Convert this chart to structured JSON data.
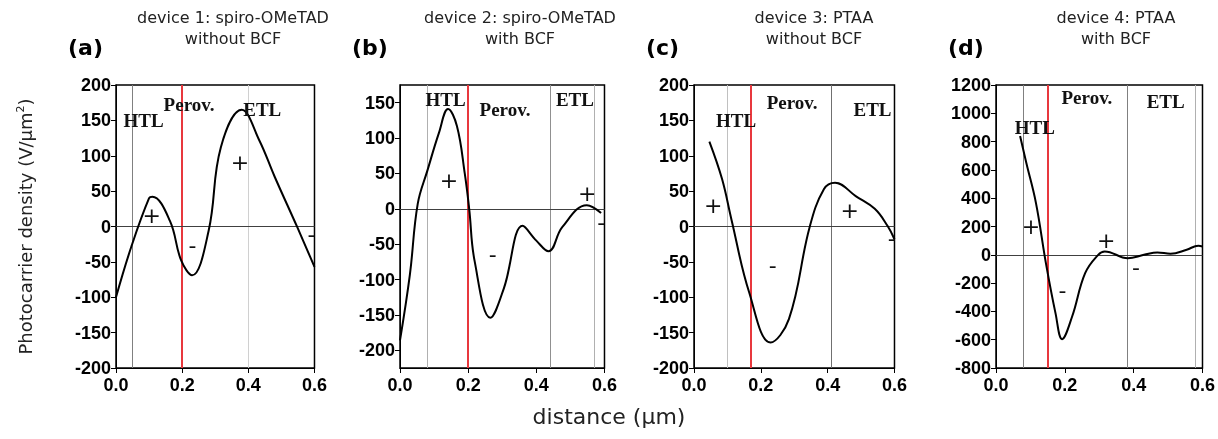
{
  "chart_data": [
    {
      "type": "line",
      "title": "device 1: spiro-OMeTAD\nwithout BCF",
      "ylabel": "Photocarrier density (V/µm$^{2}$)",
      "annotations": [
        "(a)",
        "HTL",
        "Perov.",
        "ETL",
        "+",
        "-",
        "+",
        "-"
      ],
      "series": [
        {
          "color": "#000000",
          "x": [
            0,
            0.046,
            0.1,
            0.11,
            0.163,
            0.197,
            0.23,
            0.28,
            0.317,
            0.38,
            0.433,
            0.48,
            0.548,
            0.587,
            0.6
          ],
          "values": [
            -100,
            -29,
            40,
            42,
            8,
            -48,
            -69,
            -6,
            112,
            165,
            122,
            70,
            -1,
            -43,
            -57
          ]
        }
      ],
      "xlim": [
        0,
        0.6
      ],
      "xticks": [
        {
          "value": 0,
          "label": "0.0"
        },
        {
          "value": 0.2,
          "label": "0.2"
        },
        {
          "value": 0.4,
          "label": "0.4"
        },
        {
          "value": 0.6,
          "label": "0.6"
        }
      ],
      "ylim": [
        -200,
        200
      ],
      "yticks": [
        -200,
        -150,
        -100,
        -50,
        0,
        50,
        100,
        150,
        200
      ],
      "ref_lines": [
        {
          "axis": "x",
          "value": 0.046,
          "color": "#808080"
        },
        {
          "axis": "x",
          "value": 0.2,
          "color": "#e8383d"
        },
        {
          "axis": "x",
          "value": 0.4,
          "color": "#d0d0d0"
        },
        {
          "axis": "y",
          "value": 0,
          "color": "#404040"
        }
      ],
      "grid": false,
      "marker": "none",
      "line_style": "solid"
    },
    {
      "type": "line",
      "title": "device 2: spiro-OMeTAD\nwith BCF",
      "xlabel": "distance (µm)",
      "annotations": [
        "(b)",
        "HTL",
        "Perov.",
        "ETL",
        "+",
        "-",
        "+",
        "-"
      ],
      "series": [
        {
          "color": "#000000",
          "x": [
            0,
            0.029,
            0.052,
            0.081,
            0.114,
            0.141,
            0.167,
            0.19,
            0.203,
            0.219,
            0.265,
            0.305,
            0.36,
            0.4,
            0.436,
            0.476,
            0.548,
            0.59
          ],
          "values": [
            -186,
            -93,
            7,
            55,
            107,
            141,
            117,
            50,
            0,
            -74,
            -154,
            -112,
            -24,
            -45,
            -60,
            -26,
            5,
            -6
          ]
        }
      ],
      "xlim": [
        0,
        0.6
      ],
      "xticks": [
        {
          "value": 0,
          "label": "0.0"
        },
        {
          "value": 0.2,
          "label": "0.2"
        },
        {
          "value": 0.4,
          "label": "0.4"
        },
        {
          "value": 0.6,
          "label": "0.6"
        }
      ],
      "ylim": [
        -225,
        175
      ],
      "yticks": [
        -200,
        -150,
        -100,
        -50,
        0,
        50,
        100,
        150
      ],
      "ref_lines": [
        {
          "axis": "x",
          "value": 0.081,
          "color": "#b0b0b0"
        },
        {
          "axis": "x",
          "value": 0.203,
          "color": "#e8383d"
        },
        {
          "axis": "x",
          "value": 0.438,
          "color": "#909090"
        },
        {
          "axis": "x",
          "value": 0.567,
          "color": "#b0b0b0"
        },
        {
          "axis": "y",
          "value": 0,
          "color": "#404040"
        }
      ],
      "grid": false,
      "marker": "none",
      "line_style": "solid"
    },
    {
      "type": "line",
      "title": "device 3: PTAA\nwithout BCF",
      "annotations": [
        "(c)",
        "HTL",
        "Perov.",
        "ETL",
        "+",
        "-",
        "+",
        "-"
      ],
      "series": [
        {
          "color": "#000000",
          "x": [
            0.046,
            0.084,
            0.112,
            0.165,
            0.229,
            0.284,
            0.346,
            0.389,
            0.422,
            0.484,
            0.541,
            0.579,
            0.6
          ],
          "values": [
            120,
            67,
            10,
            -93,
            -164,
            -131,
            -1,
            53,
            62,
            43,
            25,
            1,
            -18
          ]
        }
      ],
      "xlim": [
        0,
        0.6
      ],
      "xticks": [
        {
          "value": 0,
          "label": "0.0"
        },
        {
          "value": 0.2,
          "label": "0.2"
        },
        {
          "value": 0.4,
          "label": "0.4"
        },
        {
          "value": 0.6,
          "label": "0.6"
        }
      ],
      "ylim": [
        -200,
        200
      ],
      "yticks": [
        -200,
        -150,
        -100,
        -50,
        0,
        50,
        100,
        150,
        200
      ],
      "ref_lines": [
        {
          "axis": "x",
          "value": 0.103,
          "color": "#c0c0c0"
        },
        {
          "axis": "x",
          "value": 0.165,
          "color": "#e8383d"
        },
        {
          "axis": "x",
          "value": 0.415,
          "color": "#707070"
        },
        {
          "axis": "y",
          "value": 0,
          "color": "#404040"
        }
      ],
      "grid": false,
      "marker": "none",
      "line_style": "solid"
    },
    {
      "type": "line",
      "title": "device 4: PTAA\nwith BCF",
      "annotations": [
        "(d)",
        "HTL",
        "Perov.",
        "ETL",
        "+",
        "-",
        "+",
        "-"
      ],
      "series": [
        {
          "color": "#000000",
          "x": [
            0.07,
            0.088,
            0.116,
            0.145,
            0.173,
            0.192,
            0.221,
            0.259,
            0.297,
            0.316,
            0.383,
            0.43,
            0.469,
            0.507,
            0.554,
            0.588,
            0.6
          ],
          "values": [
            840,
            650,
            367,
            -59,
            -414,
            -596,
            -438,
            -130,
            0,
            24,
            -24,
            0,
            17,
            7,
            36,
            64,
            59
          ]
        }
      ],
      "xlim": [
        0,
        0.6
      ],
      "xticks": [
        {
          "value": 0,
          "label": "0.0"
        },
        {
          "value": 0.2,
          "label": "0.2"
        },
        {
          "value": 0.4,
          "label": "0.4"
        },
        {
          "value": 0.6,
          "label": "0.6"
        }
      ],
      "ylim": [
        -800,
        1200
      ],
      "yticks": [
        -800,
        -600,
        -400,
        -200,
        0,
        200,
        400,
        600,
        800,
        1000,
        1200
      ],
      "ref_lines": [
        {
          "axis": "x",
          "value": 0.076,
          "color": "#808080"
        },
        {
          "axis": "x",
          "value": 0.146,
          "color": "#e8383d"
        },
        {
          "axis": "x",
          "value": 0.381,
          "color": "#808080"
        },
        {
          "axis": "x",
          "value": 0.576,
          "color": "#b0b0b0"
        },
        {
          "axis": "y",
          "value": 0,
          "color": "#404040"
        }
      ],
      "grid": false,
      "marker": "none",
      "line_style": "solid"
    }
  ]
}
